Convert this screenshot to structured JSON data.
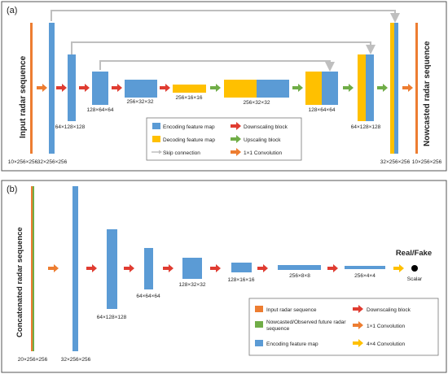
{
  "panel_a": {
    "label": "(a)",
    "input_label": "Input radar sequence",
    "output_label": "Nowcasted radar sequence",
    "dims": {
      "input": "10×256×256",
      "enc1": "32×256×256",
      "enc2": "64×128×128",
      "enc3": "128×64×64",
      "enc4": "256×32×32",
      "bottleneck": "256×16×16",
      "dec4": "256×32×32",
      "dec3": "128×64×64",
      "dec2": "64×128×128",
      "dec1": "32×256×256",
      "output": "10×256×256"
    },
    "legend": {
      "encoding": "Encoding feature map",
      "decoding": "Decoding feature map",
      "skip": "Skip connection",
      "down": "Downscaling block",
      "up": "Upscaling block",
      "conv": "1×1 Convolution"
    }
  },
  "panel_b": {
    "label": "(b)",
    "input_label": "Concatenated radar sequence",
    "result_label": "Real/Fake",
    "scalar_label": "Scalar",
    "dims": {
      "input": "20×256×256",
      "f1": "32×256×256",
      "f2": "64×128×128",
      "f3": "64×64×64",
      "f4": "128×32×32",
      "f5": "128×16×16",
      "f6": "256×8×8",
      "f7": "256×4×4"
    },
    "legend": {
      "input": "Input radar sequence",
      "nowcast_line1": "Nowcasted/Observed future radar",
      "nowcast_line2": "sequence",
      "encoding": "Encoding feature map",
      "down": "Downscaling block",
      "conv": "1×1 Convolution",
      "conv4": "4×4 Convolution"
    }
  },
  "colors": {
    "encoding": "#5b9bd5",
    "decoding": "#ffc000",
    "input": "#ed7d31",
    "nowcast": "#70ad47",
    "down_arrow": "#e03c31",
    "up_arrow": "#70ad47",
    "conv_arrow": "#ed7d31",
    "conv4_arrow": "#ffc000",
    "skip": "#bfbfbf"
  }
}
